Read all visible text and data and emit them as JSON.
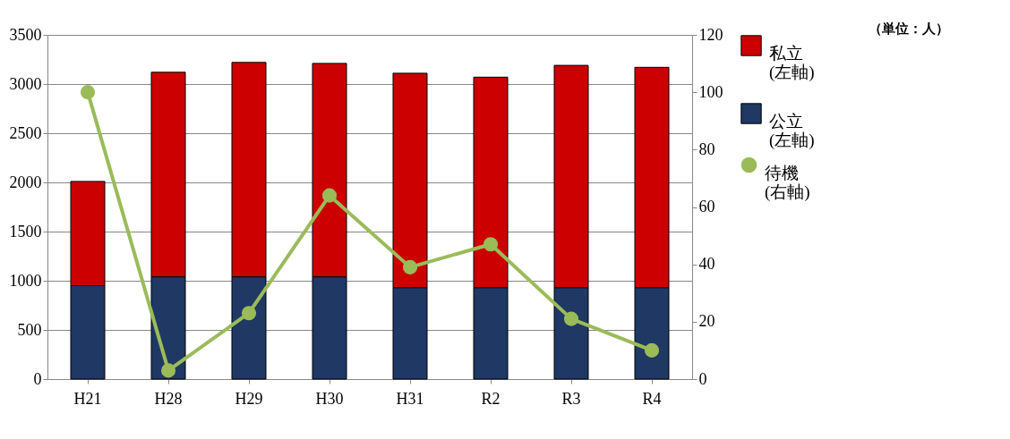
{
  "chart_data": {
    "type": "bar",
    "stacked": true,
    "categories": [
      "H21",
      "H28",
      "H29",
      "H30",
      "H31",
      "R2",
      "R3",
      "R4"
    ],
    "series": [
      {
        "name": "公立\n(左軸)",
        "color": "#1f3864",
        "values": [
          950,
          1040,
          1040,
          1040,
          930,
          930,
          930,
          930
        ]
      },
      {
        "name": "私立\n(左軸)",
        "color": "#cc0000",
        "values": [
          1060,
          2080,
          2180,
          2170,
          2180,
          2140,
          2260,
          2240
        ]
      },
      {
        "name": "待機\n(右軸)",
        "type": "line",
        "axis": "y2",
        "color": "#9bbb59",
        "values": [
          100,
          3,
          23,
          64,
          39,
          47,
          21,
          10
        ]
      }
    ],
    "ylim": [
      0,
      3500
    ],
    "yticks": [
      0,
      500,
      1000,
      1500,
      2000,
      2500,
      3000,
      3500
    ],
    "y2lim": [
      0,
      120
    ],
    "y2ticks": [
      0,
      20,
      40,
      60,
      80,
      100,
      120
    ],
    "grid": "y",
    "legend": "right",
    "marker": "circle",
    "line_style": "solid",
    "annotations": [
      "（単位：人）"
    ]
  }
}
